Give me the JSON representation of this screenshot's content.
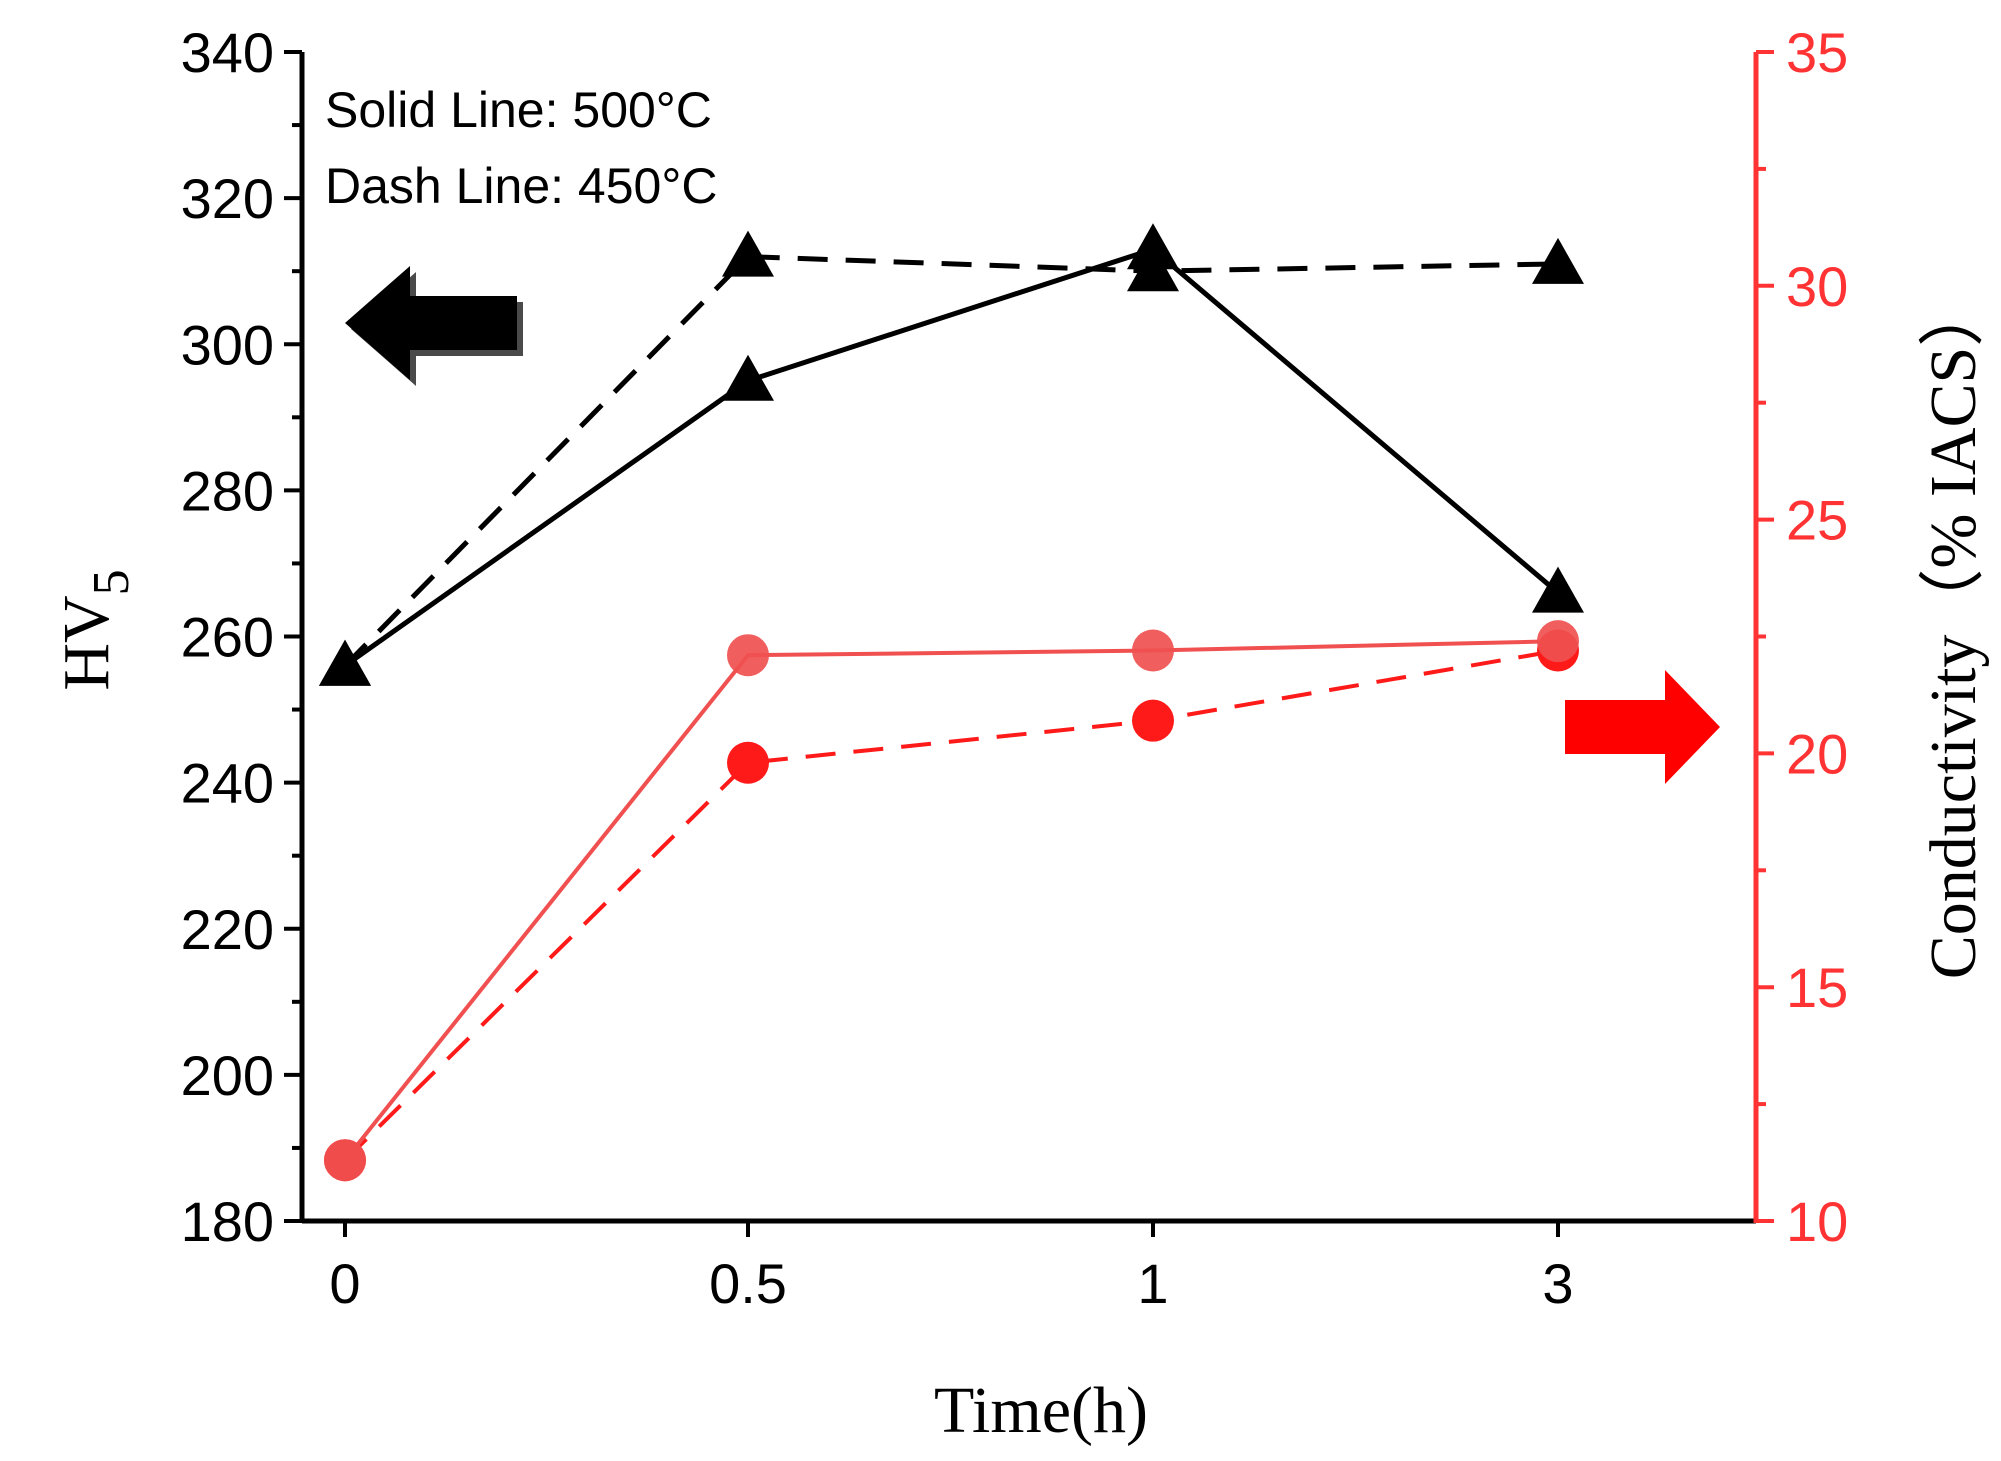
{
  "chart_data": {
    "type": "line",
    "xlabel": "Time(h)",
    "categories": [
      "0",
      "0.5",
      "1",
      "3"
    ],
    "y_left": {
      "label_main": "HV",
      "label_sub": "5",
      "range": [
        180,
        340
      ],
      "ticks": [
        180,
        200,
        220,
        240,
        260,
        280,
        300,
        320,
        340
      ],
      "color": "#000000"
    },
    "y_right": {
      "label": "Conductivity（% IACS）",
      "range": [
        10,
        35
      ],
      "ticks": [
        10,
        15,
        20,
        25,
        30,
        35
      ],
      "color": "#ff3333"
    },
    "series": [
      {
        "name": "HV5 500°C",
        "axis": "left",
        "style": "solid",
        "marker": "triangle",
        "color": "#000000",
        "values": [
          256,
          295,
          313,
          266
        ]
      },
      {
        "name": "HV5 450°C",
        "axis": "left",
        "style": "dashed",
        "marker": "triangle",
        "color": "#000000",
        "values": [
          256,
          312,
          310,
          311
        ]
      },
      {
        "name": "Conductivity 500°C",
        "axis": "right",
        "style": "solid",
        "marker": "circle",
        "color": "#f05050",
        "values": [
          11.3,
          22.1,
          22.2,
          22.4
        ]
      },
      {
        "name": "Conductivity 450°C",
        "axis": "right",
        "style": "dashed",
        "marker": "circle",
        "color": "#ff1a1a",
        "values": [
          11.3,
          19.8,
          20.7,
          22.2
        ]
      }
    ],
    "annotations": [
      "Solid Line: 500°C",
      "Dash Line: 450°C"
    ],
    "arrows": [
      {
        "direction": "left",
        "axis": "left",
        "color": "#000000"
      },
      {
        "direction": "right",
        "axis": "right",
        "color": "#ff0000"
      }
    ]
  }
}
